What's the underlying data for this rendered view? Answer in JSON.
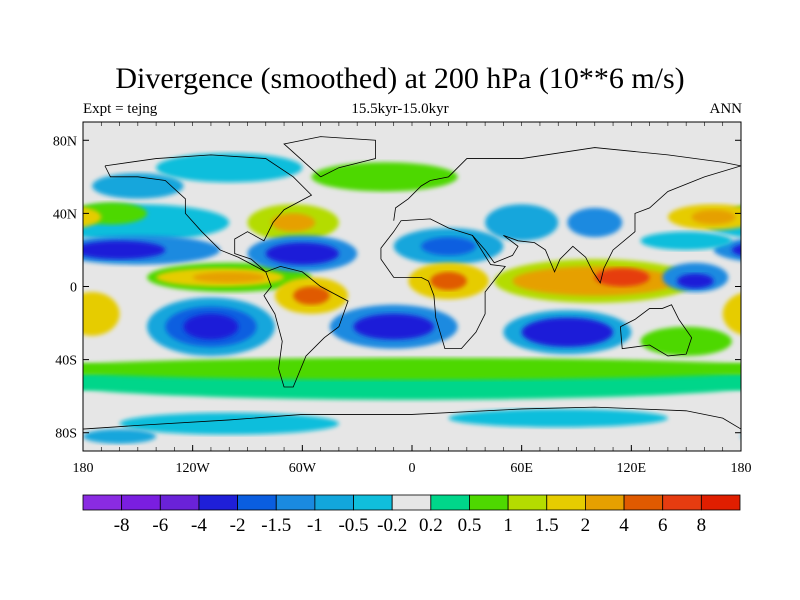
{
  "title": "Divergence (smoothed) at 200 hPa (10**6 m/s)",
  "left_label": "Expt = tejng",
  "center_label": "15.5kyr-15.0kyr",
  "right_label": "ANN",
  "chart_data": {
    "type": "heatmap",
    "projection": "cylindrical-equidistant",
    "xlim": [
      -180,
      180
    ],
    "ylim": [
      -90,
      90
    ],
    "x_ticks": [
      {
        "v": -180,
        "label": "180"
      },
      {
        "v": -120,
        "label": "120W"
      },
      {
        "v": -60,
        "label": "60W"
      },
      {
        "v": 0,
        "label": "0"
      },
      {
        "v": 60,
        "label": "60E"
      },
      {
        "v": 120,
        "label": "120E"
      },
      {
        "v": 180,
        "label": "180"
      }
    ],
    "y_ticks": [
      {
        "v": 80,
        "label": "80N"
      },
      {
        "v": 40,
        "label": "40N"
      },
      {
        "v": 0,
        "label": "0"
      },
      {
        "v": -40,
        "label": "40S"
      },
      {
        "v": -80,
        "label": "80S"
      }
    ],
    "colorbar": {
      "levels": [
        "-8",
        "-6",
        "-4",
        "-2",
        "-1.5",
        "-1",
        "-0.5",
        "-0.2",
        "0.2",
        "0.5",
        "1",
        "1.5",
        "2",
        "4",
        "6",
        "8"
      ],
      "colors": [
        "#8a2be2",
        "#7a1ee0",
        "#6a22d8",
        "#1f1fd8",
        "#0a5ee0",
        "#1a8ae0",
        "#12a6dc",
        "#10bedc",
        "#e6e6e6",
        "#00d68a",
        "#4ed800",
        "#b4dc00",
        "#e6cc00",
        "#e6a000",
        "#e05a00",
        "#e63c10",
        "#e01e00"
      ]
    },
    "field_regions": [
      {
        "lon": 0,
        "lat": -52,
        "rlon": 200,
        "rlat": 10,
        "level": 9
      },
      {
        "lon": 0,
        "lat": -45,
        "rlon": 200,
        "rlat": 6,
        "level": 10
      },
      {
        "lon": -100,
        "lat": -75,
        "rlon": 60,
        "rlat": 6,
        "level": 7
      },
      {
        "lon": 80,
        "lat": -72,
        "rlon": 60,
        "rlat": 5,
        "level": 7
      },
      {
        "lon": -160,
        "lat": -82,
        "rlon": 20,
        "rlat": 4,
        "level": 6
      },
      {
        "lon": -150,
        "lat": 35,
        "rlon": 50,
        "rlat": 10,
        "level": 7
      },
      {
        "lon": -150,
        "lat": 20,
        "rlon": 45,
        "rlat": 8,
        "level": 5
      },
      {
        "lon": -160,
        "lat": 20,
        "rlon": 25,
        "rlat": 5,
        "level": 3
      },
      {
        "lon": -165,
        "lat": 40,
        "rlon": 20,
        "rlat": 6,
        "level": 10
      },
      {
        "lon": 165,
        "lat": 38,
        "rlon": 25,
        "rlat": 7,
        "level": 12
      },
      {
        "lon": 165,
        "lat": 38,
        "rlon": 12,
        "rlat": 4,
        "level": 13
      },
      {
        "lon": -150,
        "lat": 55,
        "rlon": 25,
        "rlat": 7,
        "level": 6
      },
      {
        "lon": -100,
        "lat": 65,
        "rlon": 40,
        "rlat": 8,
        "level": 7
      },
      {
        "lon": -100,
        "lat": 5,
        "rlon": 45,
        "rlat": 8,
        "level": 10
      },
      {
        "lon": -105,
        "lat": 5,
        "rlon": 35,
        "rlat": 5,
        "level": 12
      },
      {
        "lon": -100,
        "lat": 5,
        "rlon": 20,
        "rlat": 3,
        "level": 13
      },
      {
        "lon": -110,
        "lat": -22,
        "rlon": 35,
        "rlat": 16,
        "level": 6
      },
      {
        "lon": -110,
        "lat": -22,
        "rlon": 25,
        "rlat": 11,
        "level": 4
      },
      {
        "lon": -110,
        "lat": -22,
        "rlon": 15,
        "rlat": 7,
        "level": 3
      },
      {
        "lon": -175,
        "lat": -15,
        "rlon": 15,
        "rlat": 12,
        "level": 12
      },
      {
        "lon": -65,
        "lat": 35,
        "rlon": 25,
        "rlat": 10,
        "level": 11
      },
      {
        "lon": -65,
        "lat": 35,
        "rlon": 12,
        "rlat": 5,
        "level": 13
      },
      {
        "lon": -60,
        "lat": 18,
        "rlon": 30,
        "rlat": 10,
        "level": 5
      },
      {
        "lon": -60,
        "lat": 18,
        "rlon": 20,
        "rlat": 6,
        "level": 3
      },
      {
        "lon": -55,
        "lat": -5,
        "rlon": 20,
        "rlat": 10,
        "level": 12
      },
      {
        "lon": -55,
        "lat": -5,
        "rlon": 10,
        "rlat": 5,
        "level": 14
      },
      {
        "lon": -15,
        "lat": 60,
        "rlon": 40,
        "rlat": 8,
        "level": 10
      },
      {
        "lon": -10,
        "lat": -22,
        "rlon": 35,
        "rlat": 12,
        "level": 5
      },
      {
        "lon": -10,
        "lat": -22,
        "rlon": 22,
        "rlat": 7,
        "level": 3
      },
      {
        "lon": 20,
        "lat": 22,
        "rlon": 30,
        "rlat": 10,
        "level": 6
      },
      {
        "lon": 20,
        "lat": 22,
        "rlon": 15,
        "rlat": 5,
        "level": 4
      },
      {
        "lon": 20,
        "lat": 3,
        "rlon": 22,
        "rlat": 10,
        "level": 12
      },
      {
        "lon": 20,
        "lat": 3,
        "rlon": 10,
        "rlat": 5,
        "level": 14
      },
      {
        "lon": 60,
        "lat": 35,
        "rlon": 20,
        "rlat": 10,
        "level": 6
      },
      {
        "lon": 100,
        "lat": 35,
        "rlon": 15,
        "rlat": 8,
        "level": 5
      },
      {
        "lon": 100,
        "lat": 3,
        "rlon": 55,
        "rlat": 12,
        "level": 11
      },
      {
        "lon": 100,
        "lat": 3,
        "rlon": 45,
        "rlat": 8,
        "level": 13
      },
      {
        "lon": 115,
        "lat": 5,
        "rlon": 15,
        "rlat": 5,
        "level": 15
      },
      {
        "lon": 85,
        "lat": -25,
        "rlon": 35,
        "rlat": 12,
        "level": 6
      },
      {
        "lon": 85,
        "lat": -25,
        "rlon": 25,
        "rlat": 8,
        "level": 3
      },
      {
        "lon": 155,
        "lat": 5,
        "rlon": 18,
        "rlat": 8,
        "level": 5
      },
      {
        "lon": 155,
        "lat": 3,
        "rlon": 10,
        "rlat": 4,
        "level": 3
      },
      {
        "lon": 150,
        "lat": 25,
        "rlon": 25,
        "rlat": 5,
        "level": 7
      },
      {
        "lon": 150,
        "lat": -30,
        "rlon": 25,
        "rlat": 8,
        "level": 10
      }
    ]
  }
}
